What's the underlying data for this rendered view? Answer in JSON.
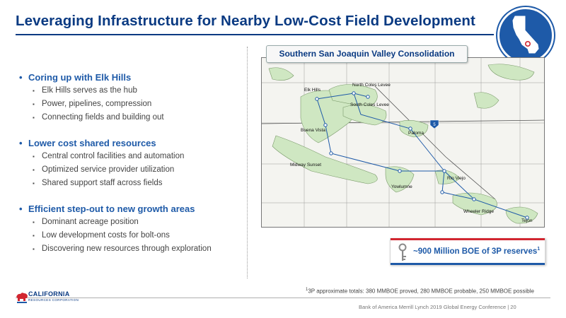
{
  "title": "Leveraging Infrastructure for Nearby Low-Cost Field Development",
  "bullets": [
    {
      "heading": "Coring up with Elk Hills",
      "items": [
        "Elk Hills serves as the hub",
        "Power, pipelines, compression",
        "Connecting fields and building out"
      ]
    },
    {
      "heading": "Lower cost shared resources",
      "items": [
        "Central control facilities and automation",
        "Optimized service provider utilization",
        "Shared support staff across fields"
      ]
    },
    {
      "heading": "Efficient step-out to new growth areas",
      "items": [
        "Dominant acreage position",
        "Low development costs for bolt-ons",
        "Discovering new resources through exploration"
      ]
    }
  ],
  "map": {
    "title": "Southern San Joaquin Valley Consolidation",
    "fields": [
      "Elk Hills",
      "North Coles Levee",
      "South Coles Levee",
      "Buena Vista",
      "Paloma",
      "Midway Sunset",
      "Yowlumne",
      "Rio Viejo",
      "Wheeler Ridge",
      "Tejon"
    ],
    "highway_marker": "5"
  },
  "reserves": {
    "text": "~900 Million BOE of 3P reserves",
    "sup": "1"
  },
  "footnote": {
    "sup": "1",
    "text": "3P approximate totals: 380 MMBOE proved, 280 MMBOE probable, 250 MMBOE possible"
  },
  "footer": "Bank of America Merrill Lynch 2019 Global Energy Conference | 20",
  "logo": {
    "name": "CALIFORNIA",
    "sub": "RESOURCES CORPORATION"
  },
  "colors": {
    "title": "#0a3a82",
    "accent_blue": "#1e5aa8",
    "accent_red": "#d22630",
    "field_green": "#cfe7c2"
  }
}
